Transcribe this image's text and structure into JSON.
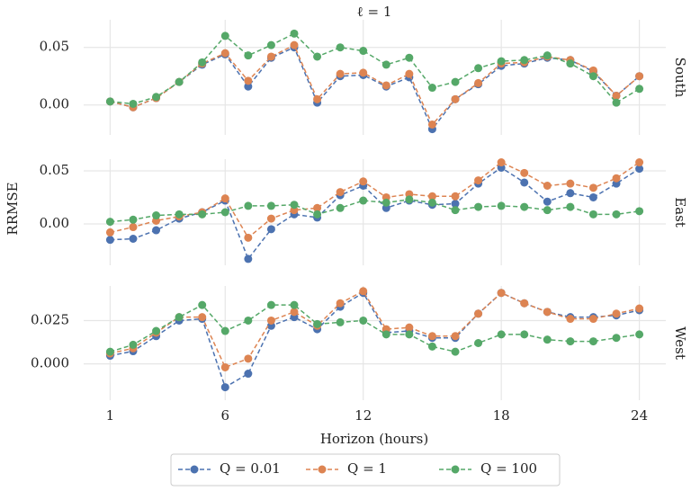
{
  "title": "ℓ = 1",
  "x_label": "Horizon (hours)",
  "y_label": "RRMSE",
  "chart_data": [
    {
      "type": "line",
      "facet_label": "South",
      "x": [
        1,
        2,
        3,
        4,
        5,
        6,
        7,
        8,
        9,
        10,
        11,
        12,
        13,
        14,
        15,
        16,
        17,
        18,
        19,
        20,
        21,
        22,
        23,
        24
      ],
      "xlim": [
        -0.15,
        25.15
      ],
      "xticks": [
        1,
        6,
        12,
        18,
        24
      ],
      "ylim": [
        -0.026,
        0.074
      ],
      "yticks": [
        {
          "value": 0,
          "label": "0.00"
        },
        0.05
      ],
      "grid": true,
      "series": [
        {
          "name": "Q = 0.01",
          "color": "#4c72b0",
          "values": [
            0.003,
            -0.002,
            0.006,
            0.02,
            0.035,
            0.044,
            0.016,
            0.041,
            0.05,
            0.002,
            0.025,
            0.026,
            0.016,
            0.024,
            -0.021,
            0.005,
            0.018,
            0.034,
            0.036,
            0.041,
            0.039,
            0.029,
            0.008,
            0.025
          ]
        },
        {
          "name": "Q = 1",
          "color": "#dd8452",
          "values": [
            0.003,
            -0.002,
            0.006,
            0.02,
            0.036,
            0.045,
            0.021,
            0.042,
            0.052,
            0.005,
            0.027,
            0.028,
            0.017,
            0.027,
            -0.017,
            0.005,
            0.019,
            0.036,
            0.037,
            0.042,
            0.039,
            0.03,
            0.008,
            0.025
          ]
        },
        {
          "name": "Q = 100",
          "color": "#55a868",
          "values": [
            0.003,
            0.001,
            0.007,
            0.02,
            0.037,
            0.06,
            0.043,
            0.052,
            0.062,
            0.042,
            0.05,
            0.047,
            0.035,
            0.041,
            0.015,
            0.02,
            0.032,
            0.038,
            0.039,
            0.043,
            0.036,
            0.025,
            0.002,
            0.014
          ]
        }
      ]
    },
    {
      "type": "line",
      "facet_label": "East",
      "x": [
        1,
        2,
        3,
        4,
        5,
        6,
        7,
        8,
        9,
        10,
        11,
        12,
        13,
        14,
        15,
        16,
        17,
        18,
        19,
        20,
        21,
        22,
        23,
        24
      ],
      "xlim": [
        -0.15,
        25.15
      ],
      "xticks": [
        1,
        6,
        12,
        18,
        24
      ],
      "ylim": [
        -0.039,
        0.061
      ],
      "yticks": [
        {
          "value": 0,
          "label": "0.00"
        },
        0.05
      ],
      "grid": true,
      "series": [
        {
          "name": "Q = 0.01",
          "color": "#4c72b0",
          "values": [
            -0.015,
            -0.014,
            -0.006,
            0.005,
            0.011,
            0.022,
            -0.033,
            -0.005,
            0.009,
            0.006,
            0.027,
            0.036,
            0.015,
            0.022,
            0.018,
            0.019,
            0.038,
            0.053,
            0.039,
            0.021,
            0.029,
            0.025,
            0.038,
            0.052
          ]
        },
        {
          "name": "Q = 1",
          "color": "#dd8452",
          "values": [
            -0.008,
            -0.003,
            0.003,
            0.007,
            0.011,
            0.024,
            -0.013,
            0.005,
            0.013,
            0.015,
            0.03,
            0.04,
            0.025,
            0.028,
            0.026,
            0.026,
            0.041,
            0.058,
            0.048,
            0.036,
            0.038,
            0.034,
            0.043,
            0.058
          ]
        },
        {
          "name": "Q = 100",
          "color": "#55a868",
          "values": [
            0.002,
            0.004,
            0.008,
            0.009,
            0.009,
            0.011,
            0.017,
            0.017,
            0.018,
            0.009,
            0.015,
            0.022,
            0.02,
            0.023,
            0.02,
            0.013,
            0.016,
            0.017,
            0.016,
            0.013,
            0.016,
            0.009,
            0.009,
            0.012
          ]
        }
      ]
    },
    {
      "type": "line",
      "facet_label": "West",
      "x": [
        1,
        2,
        3,
        4,
        5,
        6,
        7,
        8,
        9,
        10,
        11,
        12,
        13,
        14,
        15,
        16,
        17,
        18,
        19,
        20,
        21,
        22,
        23,
        24
      ],
      "xlim": [
        -0.15,
        25.15
      ],
      "xticks": [
        1,
        6,
        12,
        18,
        24
      ],
      "ylim": [
        -0.021,
        0.045
      ],
      "yticks": [
        {
          "value": 0,
          "label": "0.000"
        },
        0.025
      ],
      "grid": true,
      "series": [
        {
          "name": "Q = 0.01",
          "color": "#4c72b0",
          "values": [
            0.0047,
            0.0073,
            0.016,
            0.025,
            0.026,
            -0.0135,
            -0.0057,
            0.022,
            0.027,
            0.02,
            0.033,
            0.041,
            0.018,
            0.019,
            0.015,
            0.015,
            0.029,
            0.041,
            0.035,
            0.03,
            0.027,
            0.027,
            0.028,
            0.031
          ]
        },
        {
          "name": "Q = 1",
          "color": "#dd8452",
          "values": [
            0.006,
            0.009,
            0.018,
            0.027,
            0.027,
            -0.002,
            0.003,
            0.025,
            0.03,
            0.022,
            0.035,
            0.042,
            0.02,
            0.021,
            0.016,
            0.016,
            0.029,
            0.041,
            0.035,
            0.03,
            0.026,
            0.026,
            0.029,
            0.032
          ]
        },
        {
          "name": "Q = 100",
          "color": "#55a868",
          "values": [
            0.007,
            0.011,
            0.019,
            0.027,
            0.034,
            0.019,
            0.025,
            0.034,
            0.034,
            0.023,
            0.024,
            0.025,
            0.017,
            0.017,
            0.01,
            0.007,
            0.012,
            0.017,
            0.017,
            0.014,
            0.013,
            0.013,
            0.015,
            0.017
          ]
        }
      ]
    }
  ]
}
